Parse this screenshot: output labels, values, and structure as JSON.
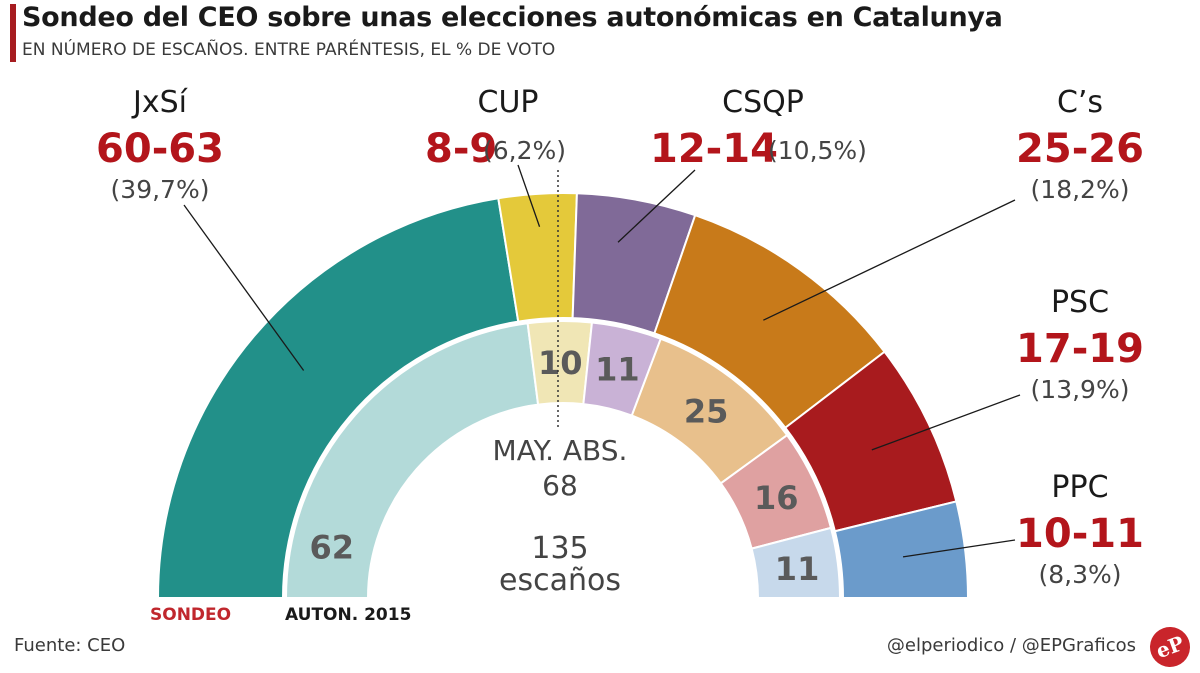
{
  "title": "Sondeo del CEO sobre unas elecciones autonómicas en Catalunya",
  "subtitle": "EN NÚMERO DE ESCAÑOS.  ENTRE PARÉNTESIS, EL % DE VOTO",
  "source": "Fuente: CEO",
  "credit": "@elperiodico / @EPGraficos",
  "logo_text": "eP",
  "chart_data": {
    "type": "parliament-semicircle",
    "total_seats_label": "135",
    "seats_word": "escaños",
    "majority_label": "MAY. ABS.",
    "majority_value": "68",
    "outer_ring_label": "SONDEO",
    "inner_ring_label": "AUTON. 2015",
    "outer_series": [
      {
        "party": "JxSí",
        "seats_range": "60-63",
        "vote_pct": "(39,7%)",
        "seats_mid": 61.5,
        "color": "#229089"
      },
      {
        "party": "CUP",
        "seats_range": "8-9",
        "vote_pct": "(6,2%)",
        "seats_mid": 8.5,
        "color": "#e4c93a"
      },
      {
        "party": "CSQP",
        "seats_range": "12-14",
        "vote_pct": "(10,5%)",
        "seats_mid": 13,
        "color": "#806a98"
      },
      {
        "party": "C’s",
        "seats_range": "25-26",
        "vote_pct": "(18,2%)",
        "seats_mid": 25.5,
        "color": "#c87a1a"
      },
      {
        "party": "PSC",
        "seats_range": "17-19",
        "vote_pct": "(13,9%)",
        "seats_mid": 18,
        "color": "#a81b1e"
      },
      {
        "party": "PPC",
        "seats_range": "10-11",
        "vote_pct": "(8,3%)",
        "seats_mid": 10.5,
        "color": "#6b9bcb"
      }
    ],
    "inner_series": [
      {
        "party": "JxSí",
        "seats": 62,
        "color": "#b3dad9"
      },
      {
        "party": "CUP",
        "seats": 10,
        "color": "#f0e6b5"
      },
      {
        "party": "CSQP",
        "seats": 11,
        "color": "#c9b2d6"
      },
      {
        "party": "C’s",
        "seats": 25,
        "color": "#e8c08c"
      },
      {
        "party": "PSC",
        "seats": 16,
        "color": "#dfa1a1"
      },
      {
        "party": "PPC",
        "seats": 11,
        "color": "#c7d9eb"
      }
    ]
  }
}
